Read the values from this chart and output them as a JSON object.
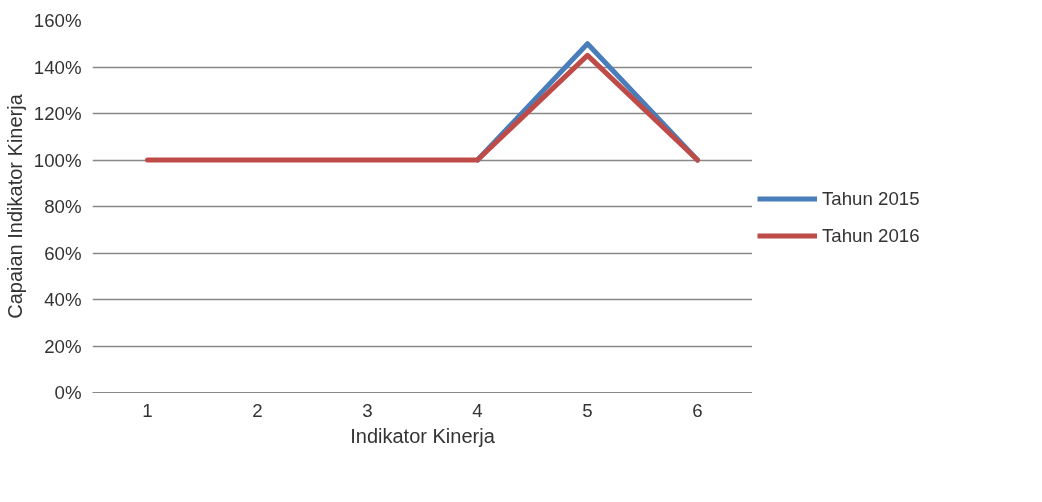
{
  "chart_data": {
    "type": "line",
    "xlabel": "Indikator Kinerja",
    "ylabel": "Capaian Indikator Kinerja",
    "categories": [
      "1",
      "2",
      "3",
      "4",
      "5",
      "6"
    ],
    "series": [
      {
        "name": "Tahun 2015",
        "color": "#4a7ebb",
        "values": [
          null,
          null,
          null,
          100,
          150,
          100
        ]
      },
      {
        "name": "Tahun 2016",
        "color": "#be4b48",
        "values": [
          100,
          100,
          100,
          100,
          145,
          100
        ]
      }
    ],
    "ylim": [
      0,
      160
    ],
    "yticks": [
      {
        "value": 0,
        "label": "0%"
      },
      {
        "value": 20,
        "label": "20%"
      },
      {
        "value": 40,
        "label": "40%"
      },
      {
        "value": 60,
        "label": "60%"
      },
      {
        "value": 80,
        "label": "80%"
      },
      {
        "value": 100,
        "label": "100%"
      },
      {
        "value": 120,
        "label": "120%"
      },
      {
        "value": 140,
        "label": "140%"
      },
      {
        "value": 160,
        "label": "160%"
      }
    ],
    "grid": "y",
    "legend": "right",
    "marker": "none",
    "line_style": "solid"
  }
}
